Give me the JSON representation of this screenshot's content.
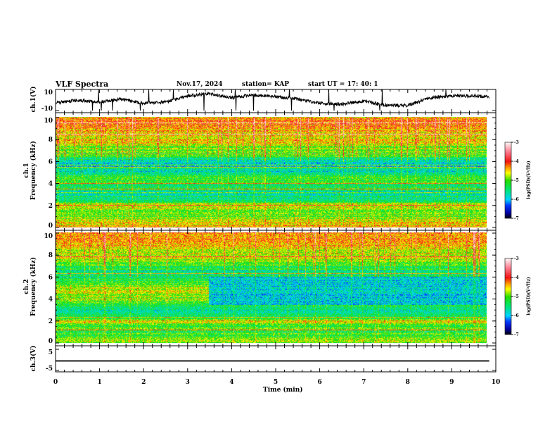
{
  "header": {
    "title": "VLF Spectra",
    "date": "Nov.17, 2024",
    "station": "station= KAP",
    "start_ut": "start  UT =   17: 40: 1"
  },
  "chart_data": [
    {
      "type": "line",
      "name": "ch1",
      "ylabel": "ch.1(V)",
      "ylim": [
        -10,
        10
      ],
      "yticks": [
        "10",
        "-10"
      ],
      "x": [
        0,
        0.5,
        1,
        1.5,
        2,
        2.5,
        3,
        3.5,
        4,
        4.5,
        5,
        5.5,
        6,
        6.5,
        7,
        7.5,
        8,
        8.5,
        9,
        9.5,
        9.85
      ],
      "y": [
        -3,
        0,
        -2,
        1,
        -3,
        -2,
        4,
        6,
        2,
        5,
        3,
        1,
        -3,
        -4,
        -1,
        -5,
        -5,
        2,
        4,
        4,
        3
      ]
    },
    {
      "type": "heatmap",
      "name": "ch1-spectrogram",
      "ylabel_line1": "ch.1",
      "ylabel_line2": "Frequency (kHz)",
      "ylim": [
        0,
        10
      ],
      "yticks": [
        "0",
        "2",
        "4",
        "6",
        "8",
        "10"
      ],
      "freq_khz": [
        0,
        0.5,
        1,
        1.5,
        2,
        2.5,
        3,
        3.5,
        4,
        4.5,
        5,
        5.5,
        6,
        6.5,
        7,
        7.5,
        8,
        8.5,
        9,
        9.5,
        10
      ],
      "mean_log_psd": [
        -4.4,
        -4.7,
        -5.0,
        -5.1,
        -4.6,
        -5.4,
        -5.6,
        -5.5,
        -5.2,
        -5.2,
        -5.7,
        -5.8,
        -5.6,
        -5.2,
        -5.0,
        -4.7,
        -4.6,
        -4.5,
        -4.4,
        -4.3,
        -4.3
      ]
    },
    {
      "type": "heatmap",
      "name": "ch2-spectrogram",
      "ylabel_line1": "ch.2",
      "ylabel_line2": "Frequency (kHz)",
      "ylim": [
        0,
        10
      ],
      "yticks": [
        "0",
        "2",
        "4",
        "6",
        "8",
        "10"
      ],
      "freq_khz": [
        0,
        0.5,
        1,
        1.5,
        2,
        2.5,
        3,
        3.5,
        4,
        4.5,
        5,
        5.5,
        6,
        6.5,
        7,
        7.5,
        8,
        8.5,
        9,
        9.5,
        10
      ],
      "mean_log_psd": [
        -4.8,
        -5.1,
        -5.2,
        -5.1,
        -4.7,
        -5.5,
        -5.6,
        -5.2,
        -4.9,
        -4.8,
        -4.9,
        -5.2,
        -5.5,
        -5.6,
        -5.1,
        -4.8,
        -4.7,
        -4.6,
        -4.5,
        -4.4,
        -4.4
      ],
      "change_time_min": 3.5,
      "after_change_band_khz": [
        3.5,
        6.0
      ],
      "after_change_log_psd": -5.9
    },
    {
      "type": "line",
      "name": "ch3",
      "ylabel": "ch.3(V)",
      "ylim": [
        -5,
        5
      ],
      "yticks": [
        "5",
        "-5"
      ],
      "constant_level": -0.5,
      "amplitude": 0.3
    }
  ],
  "xaxis": {
    "label": "Time  (min)",
    "range": [
      0,
      10
    ],
    "data_end": 9.85,
    "ticks": [
      "0",
      "1",
      "2",
      "3",
      "4",
      "5",
      "6",
      "7",
      "8",
      "9",
      "10"
    ]
  },
  "colorbar": {
    "label": "log(PSD)(V²/Hz)",
    "range": [
      -7,
      -3
    ],
    "ticks": [
      "-3",
      "-4",
      "-5",
      "-6",
      "-7"
    ]
  }
}
